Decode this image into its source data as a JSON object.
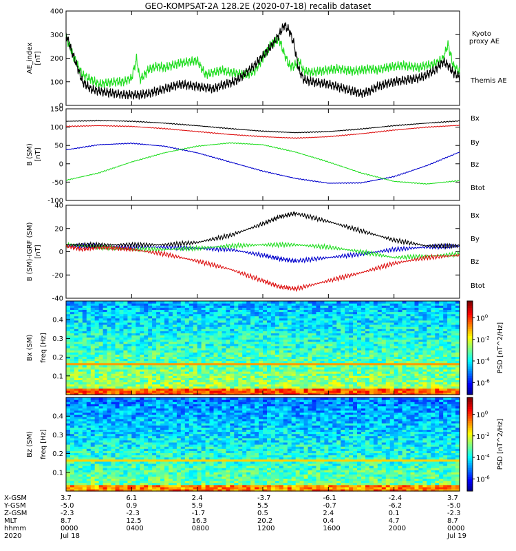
{
  "title": "GEO-KOMPSAT-2A 128.2E (2020-07-18) recalib dataset",
  "colors": {
    "black": "#000000",
    "green": "#22dd22",
    "red": "#dd1111",
    "blue": "#0000cc"
  },
  "chart_data": [
    {
      "type": "line",
      "ylabel": "AE_index [nT]",
      "ylim": [
        0,
        400
      ],
      "yticks": [
        0,
        100,
        200,
        300,
        400
      ],
      "series": [
        {
          "name": "Kyoto proxy AE",
          "color": "#22dd22",
          "x": [
            0,
            0.5,
            1,
            1.5,
            2,
            2.5,
            3,
            3.5,
            4,
            4.3,
            4.5,
            4.8,
            5,
            5.5,
            6,
            6.5,
            7,
            7.5,
            8,
            8.5,
            9,
            9.5,
            10,
            10.5,
            11,
            11.5,
            12,
            12.5,
            13,
            13.3,
            13.6,
            13.9,
            14.2,
            14.5,
            15,
            15.5,
            16,
            16.5,
            17,
            17.5,
            18,
            18.5,
            19,
            19.5,
            20,
            20.5,
            21,
            21.5,
            22,
            22.5,
            23,
            23.3,
            23.6,
            24
          ],
          "values": [
            290,
            200,
            130,
            110,
            90,
            95,
            100,
            100,
            115,
            200,
            110,
            130,
            150,
            165,
            160,
            170,
            180,
            185,
            190,
            130,
            140,
            150,
            140,
            135,
            130,
            145,
            200,
            260,
            280,
            220,
            170,
            165,
            190,
            145,
            140,
            145,
            150,
            155,
            150,
            145,
            150,
            155,
            150,
            160,
            165,
            170,
            165,
            160,
            170,
            175,
            200,
            260,
            170,
            140
          ]
        },
        {
          "name": "Themis AE",
          "color": "#000000",
          "x": [
            0,
            0.5,
            1,
            1.5,
            2,
            2.5,
            3,
            3.5,
            4,
            4.5,
            5,
            5.5,
            6,
            6.5,
            7,
            7.5,
            8,
            8.5,
            9,
            9.5,
            10,
            10.5,
            11,
            11.5,
            12,
            12.5,
            13,
            13.3,
            13.6,
            13.9,
            14.2,
            14.5,
            15,
            15.5,
            16,
            16.5,
            17,
            17.5,
            18,
            18.5,
            19,
            19.5,
            20,
            20.5,
            21,
            21.5,
            22,
            22.5,
            23,
            23.3,
            23.6,
            24
          ],
          "values": [
            300,
            200,
            100,
            70,
            60,
            55,
            50,
            45,
            45,
            45,
            50,
            60,
            70,
            80,
            90,
            85,
            80,
            75,
            70,
            85,
            95,
            110,
            140,
            170,
            210,
            250,
            300,
            340,
            320,
            260,
            150,
            110,
            100,
            95,
            90,
            80,
            70,
            60,
            50,
            60,
            80,
            90,
            100,
            105,
            110,
            115,
            130,
            150,
            185,
            170,
            140,
            120
          ]
        }
      ]
    },
    {
      "type": "line",
      "ylabel": "B (SM) [nT]",
      "ylim": [
        -100,
        150
      ],
      "yticks": [
        -100,
        -50,
        0,
        50,
        100,
        150
      ],
      "series": [
        {
          "name": "Bx",
          "color": "#0000cc",
          "x": [
            0,
            2,
            4,
            6,
            8,
            10,
            12,
            14,
            16,
            18,
            20,
            22,
            24
          ],
          "values": [
            38,
            52,
            56,
            48,
            30,
            5,
            -20,
            -40,
            -53,
            -52,
            -35,
            -5,
            32
          ]
        },
        {
          "name": "By",
          "color": "#22dd22",
          "x": [
            0,
            2,
            4,
            6,
            8,
            10,
            12,
            14,
            16,
            18,
            20,
            22,
            24
          ],
          "values": [
            -45,
            -25,
            5,
            30,
            48,
            57,
            52,
            32,
            5,
            -25,
            -48,
            -55,
            -46
          ]
        },
        {
          "name": "Bz",
          "color": "#dd1111",
          "x": [
            0,
            2,
            4,
            6,
            8,
            10,
            12,
            14,
            16,
            18,
            20,
            22,
            24
          ],
          "values": [
            102,
            104,
            102,
            96,
            88,
            80,
            74,
            70,
            74,
            82,
            92,
            100,
            105
          ]
        },
        {
          "name": "Btot",
          "color": "#000000",
          "x": [
            0,
            2,
            4,
            6,
            8,
            10,
            12,
            14,
            16,
            18,
            20,
            22,
            24
          ],
          "values": [
            116,
            118,
            116,
            111,
            104,
            96,
            89,
            85,
            88,
            95,
            104,
            111,
            117
          ]
        }
      ]
    },
    {
      "type": "line",
      "ylabel": "B (SM)-IGRF (SM) [nT]",
      "ylim": [
        -40,
        40
      ],
      "yticks": [
        -40,
        -20,
        0,
        20,
        40
      ],
      "series": [
        {
          "name": "Bx",
          "color": "#0000cc",
          "x": [
            0,
            2,
            4,
            6,
            8,
            10,
            12,
            13,
            14,
            16,
            18,
            20,
            22,
            24
          ],
          "values": [
            5,
            5,
            4,
            4,
            3,
            2,
            -3,
            -6,
            -8,
            -5,
            -2,
            2,
            4,
            5
          ]
        },
        {
          "name": "By",
          "color": "#22dd22",
          "x": [
            0,
            2,
            4,
            6,
            8,
            10,
            12,
            14,
            16,
            18,
            20,
            22,
            24
          ],
          "values": [
            6,
            4,
            2,
            2,
            3,
            5,
            6,
            6,
            4,
            0,
            -5,
            -4,
            -2
          ]
        },
        {
          "name": "Bz",
          "color": "#dd1111",
          "x": [
            0,
            1,
            2,
            3,
            4,
            6,
            8,
            10,
            12,
            13,
            14,
            16,
            18,
            20,
            22,
            24
          ],
          "values": [
            5,
            2,
            4,
            3,
            2,
            -2,
            -8,
            -15,
            -25,
            -30,
            -32,
            -25,
            -18,
            -10,
            -5,
            -3
          ]
        },
        {
          "name": "Btot",
          "color": "#000000",
          "x": [
            0,
            2,
            4,
            6,
            8,
            10,
            12,
            13,
            14,
            16,
            18,
            20,
            22,
            24
          ],
          "values": [
            6,
            6,
            6,
            6,
            8,
            14,
            24,
            30,
            33,
            26,
            18,
            10,
            5,
            5
          ]
        }
      ]
    },
    {
      "type": "heatmap",
      "ylabel": "Bx (SM) freq [Hz]",
      "ylim": [
        0,
        0.5
      ],
      "yticks": [
        0.1,
        0.2,
        0.3,
        0.4
      ],
      "colorbar_label": "PSD [nT^2/Hz]",
      "colorbar_ticks": [
        "10^0",
        "10^-2",
        "10^-4",
        "10^-6"
      ],
      "line_frequency_hz": 0.166
    },
    {
      "type": "heatmap",
      "ylabel": "Bz (SM) freq [Hz]",
      "ylim": [
        0,
        0.5
      ],
      "yticks": [
        0.1,
        0.2,
        0.3,
        0.4
      ],
      "colorbar_label": "PSD [nT^2/Hz]",
      "colorbar_ticks": [
        "10^0",
        "10^-2",
        "10^-4",
        "10^-6"
      ],
      "line_frequency_hz": 0.166
    }
  ],
  "ephemeris": {
    "labels": [
      "X-GSM",
      "Y-GSM",
      "Z-GSM",
      "MLT",
      "hhmm",
      "2020"
    ],
    "columns": [
      [
        "3.7",
        "-5.0",
        "-2.3",
        "8.7",
        "0000",
        "Jul 18"
      ],
      [
        "6.1",
        "0.9",
        "-2.3",
        "12.5",
        "0400",
        ""
      ],
      [
        "2.4",
        "5.9",
        "-1.7",
        "16.3",
        "0800",
        ""
      ],
      [
        "-3.7",
        "5.5",
        "0.5",
        "20.2",
        "1200",
        ""
      ],
      [
        "-6.1",
        "-0.7",
        "2.4",
        "0.4",
        "1600",
        ""
      ],
      [
        "-2.4",
        "-6.2",
        "0.1",
        "4.7",
        "2000",
        ""
      ],
      [
        "3.7",
        "-5.0",
        "-2.3",
        "8.7",
        "0000",
        "Jul 19"
      ]
    ]
  },
  "legend1": {
    "a": "Kyoto",
    "b": "proxy AE",
    "c": "Themis AE"
  },
  "legend2": [
    "Bx",
    "By",
    "Bz",
    "Btot"
  ],
  "legend3": [
    "Bx",
    "By",
    "Bz",
    "Btot"
  ]
}
